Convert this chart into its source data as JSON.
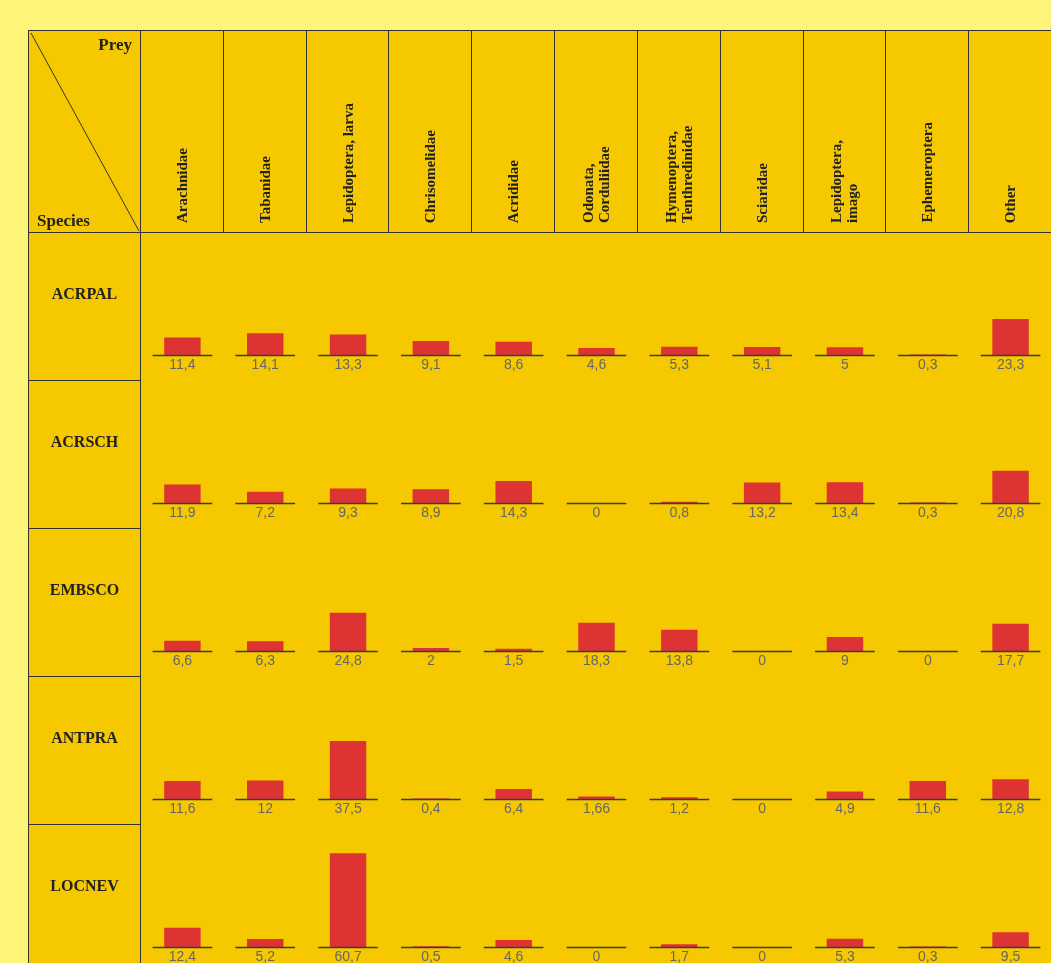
{
  "chart_data": [
    {
      "type": "bar",
      "title": "ACRPAL",
      "xlabel": "Prey",
      "ylabel": "Species",
      "categories": [
        "Arachnidae",
        "Tabanidae",
        "Lepidoptera, larva",
        "Chrisomelidae",
        "Acrididae",
        "Odonata, Corduliidae",
        "Hymenoptera, Tenthredinidae",
        "Sciaridae",
        "Lepidoptera, imago",
        "Ephemeroptera",
        "Other"
      ],
      "color": "#dd3333",
      "values": [
        11.4,
        14.1,
        13.3,
        9.1,
        8.6,
        4.6,
        5.3,
        5.1,
        5,
        0.3,
        23.3
      ],
      "value_labels": [
        "11,4",
        "14,1",
        "13,3",
        "9,1",
        "8,6",
        "4,6",
        "5,3",
        "5,1",
        "5",
        "0,3",
        "23,3"
      ],
      "legend": false
    },
    {
      "type": "bar",
      "title": "ACRSCH",
      "categories": [
        null,
        null,
        null,
        null,
        null,
        null,
        null,
        null,
        null,
        null,
        null
      ],
      "color": "#dd3333",
      "values": [
        11.9,
        7.2,
        9.3,
        8.9,
        14.3,
        0,
        0.8,
        13.2,
        13.4,
        0.3,
        20.8
      ],
      "value_labels": [
        "11,9",
        "7,2",
        "9,3",
        "8,9",
        "14,3",
        "0",
        "0,8",
        "13,2",
        "13,4",
        "0,3",
        "20,8"
      ],
      "legend": false
    },
    {
      "type": "bar",
      "title": "EMBSCO",
      "categories": [
        null,
        null,
        null,
        null,
        null,
        null,
        null,
        null,
        null,
        null,
        null
      ],
      "color": "#dd3333",
      "values": [
        6.6,
        6.3,
        24.8,
        2,
        1.5,
        18.3,
        13.8,
        0,
        9,
        0,
        17.7
      ],
      "value_labels": [
        "6,6",
        "6,3",
        "24,8",
        "2",
        "1,5",
        "18,3",
        "13,8",
        "0",
        "9",
        "0",
        "17,7"
      ],
      "legend": false
    },
    {
      "type": "bar",
      "title": "ANTPRA",
      "categories": [
        null,
        null,
        null,
        null,
        null,
        null,
        null,
        null,
        null,
        null,
        null
      ],
      "color": "#dd3333",
      "values": [
        11.6,
        12,
        37.5,
        0.4,
        6.4,
        1.66,
        1.2,
        0,
        4.9,
        11.6,
        12.8
      ],
      "value_labels": [
        "11,6",
        "12",
        "37,5",
        "0,4",
        "6,4",
        "1,66",
        "1,2",
        "0",
        "4,9",
        "11,6",
        "12,8"
      ],
      "legend": false
    },
    {
      "type": "bar",
      "title": "LOCNEV",
      "categories": [
        null,
        null,
        null,
        null,
        null,
        null,
        null,
        null,
        null,
        null,
        null
      ],
      "color": "#dd3333",
      "values": [
        12.4,
        5.2,
        60.7,
        0.5,
        4.6,
        0,
        1.7,
        0,
        5.3,
        0.3,
        9.5
      ],
      "value_labels": [
        "12,4",
        "5,2",
        "60,7",
        "0,5",
        "4,6",
        "0",
        "1,7",
        "0",
        "5,3",
        "0,3",
        "9,5"
      ],
      "legend": false
    }
  ]
}
